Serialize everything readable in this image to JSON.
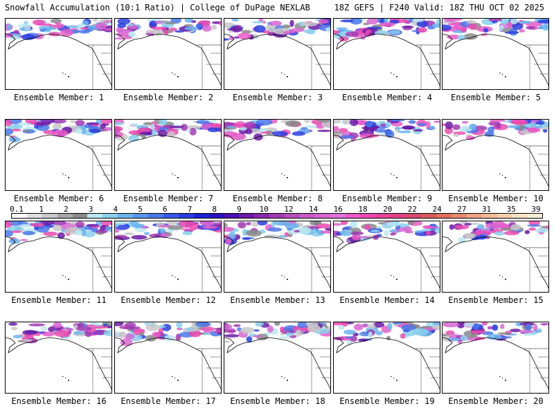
{
  "header": {
    "left_title": "Snowfall Accumulation (10:1 Ratio) | College of DuPage NEXLAB",
    "right_title": "18Z GEFS | F240 Valid: 18Z THU OCT 02 2025"
  },
  "panels": [
    {
      "label": "Ensemble Member: 1"
    },
    {
      "label": "Ensemble Member: 2"
    },
    {
      "label": "Ensemble Member: 3"
    },
    {
      "label": "Ensemble Member: 4"
    },
    {
      "label": "Ensemble Member: 5"
    },
    {
      "label": "Ensemble Member: 6"
    },
    {
      "label": "Ensemble Member: 7"
    },
    {
      "label": "Ensemble Member: 8"
    },
    {
      "label": "Ensemble Member: 9"
    },
    {
      "label": "Ensemble Member: 10"
    },
    {
      "label": "Ensemble Member: 11"
    },
    {
      "label": "Ensemble Member: 12"
    },
    {
      "label": "Ensemble Member: 13"
    },
    {
      "label": "Ensemble Member: 14"
    },
    {
      "label": "Ensemble Member: 15"
    },
    {
      "label": "Ensemble Member: 16"
    },
    {
      "label": "Ensemble Member: 17"
    },
    {
      "label": "Ensemble Member: 18"
    },
    {
      "label": "Ensemble Member: 19"
    },
    {
      "label": "Ensemble Member: 20"
    }
  ],
  "legend": {
    "labels": [
      "0.1",
      "1",
      "2",
      "3",
      "4",
      "5",
      "6",
      "7",
      "8",
      "9",
      "10",
      "12",
      "14",
      "16",
      "18",
      "20",
      "22",
      "24",
      "27",
      "31",
      "35",
      "39"
    ],
    "colors": [
      "#ffffff",
      "#e0e0e0",
      "#c8c8c8",
      "#a8a8a8",
      "#8a8a8a",
      "#b8e8f0",
      "#8ad0ec",
      "#6ab4ee",
      "#5896ec",
      "#4a78ea",
      "#3a5ae8",
      "#2a3ee0",
      "#1a22d6",
      "#2a14c0",
      "#4a10b0",
      "#6a1aa8",
      "#8a28ac",
      "#a23ab4",
      "#b84cbe",
      "#c85ac8",
      "#d866d2",
      "#e070dc",
      "#e85ac8",
      "#ec4ab0",
      "#e8449a",
      "#e04484",
      "#d84870",
      "#d85a5a",
      "#e07060",
      "#e88a70",
      "#f0a484",
      "#f4bc98",
      "#f8d2ae",
      "#fbe2c4",
      "#fdeed8"
    ]
  }
}
